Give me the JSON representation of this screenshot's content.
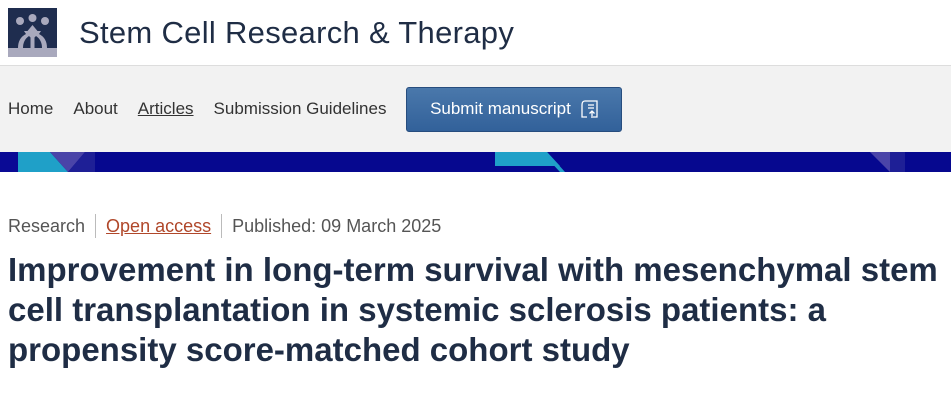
{
  "header": {
    "journal_title": "Stem Cell Research & Therapy",
    "logo_icon": "people-arrows-logo"
  },
  "nav": {
    "items": [
      {
        "label": "Home"
      },
      {
        "label": "About"
      },
      {
        "label": "Articles"
      },
      {
        "label": "Submission Guidelines"
      }
    ],
    "submit_label": "Submit manuscript",
    "submit_icon": "upload-document-icon"
  },
  "article": {
    "type": "Research",
    "access": "Open access",
    "published": "Published: 09 March 2025",
    "title": "Improvement in long-term survival with mesenchymal stem cell transplantation in systemic sclerosis patients: a propensity score-matched cohort study"
  },
  "colors": {
    "brand_navy": "#06088f",
    "button": "#3a6aa2",
    "open_access": "#b0472a"
  }
}
